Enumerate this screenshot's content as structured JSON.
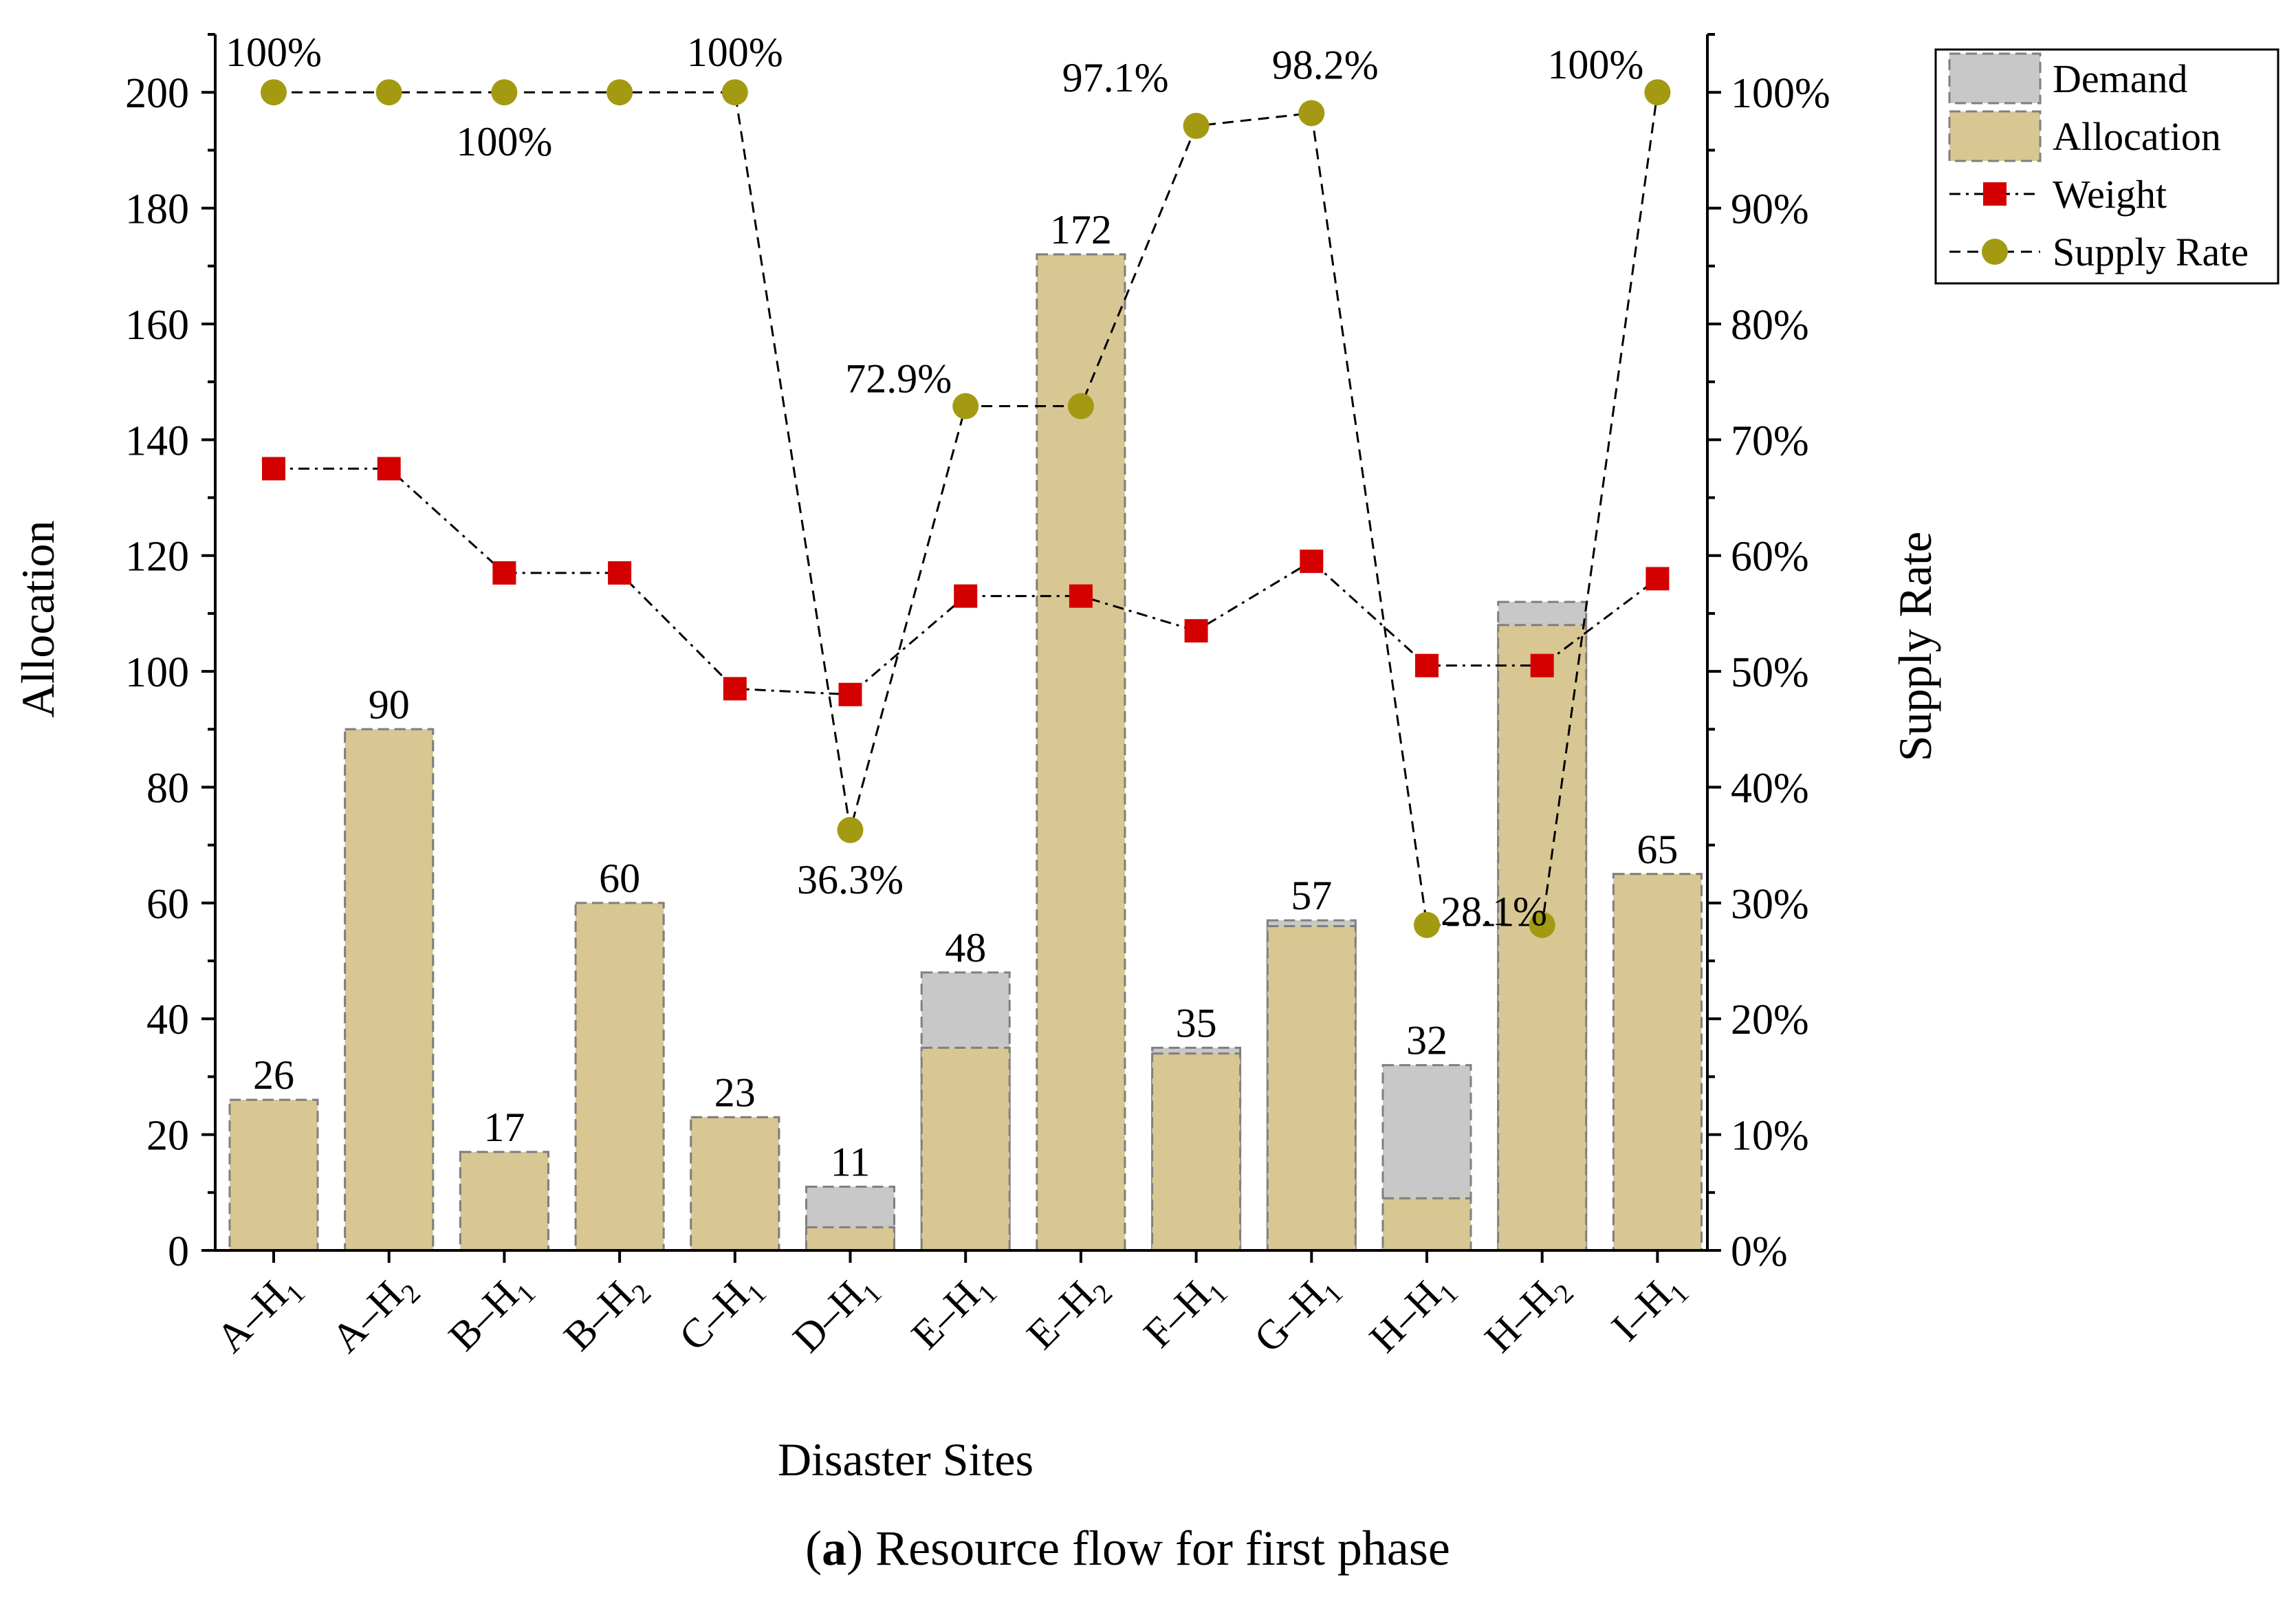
{
  "chart_data": {
    "type": "bar",
    "title": "",
    "caption": {
      "prefix": "(",
      "label": "a",
      "suffix": ") Resource flow for first phase"
    },
    "xlabel": "Disaster Sites",
    "ylabel": "Allocation",
    "y2label": "Supply Rate",
    "ylim": [
      0,
      210
    ],
    "y2lim": [
      0,
      105
    ],
    "yticks": [
      0,
      20,
      40,
      60,
      80,
      100,
      120,
      140,
      160,
      180,
      200
    ],
    "y2ticks": [
      "0%",
      "10%",
      "20%",
      "30%",
      "40%",
      "50%",
      "60%",
      "70%",
      "80%",
      "90%",
      "100%"
    ],
    "categories": [
      {
        "base": "A",
        "sub": "1"
      },
      {
        "base": "A",
        "sub": "2"
      },
      {
        "base": "B",
        "sub": "1"
      },
      {
        "base": "B",
        "sub": "2"
      },
      {
        "base": "C",
        "sub": "1"
      },
      {
        "base": "D",
        "sub": "1"
      },
      {
        "base": "E",
        "sub": "1"
      },
      {
        "base": "E",
        "sub": "2"
      },
      {
        "base": "F",
        "sub": "1"
      },
      {
        "base": "G",
        "sub": "1"
      },
      {
        "base": "H",
        "sub": "1"
      },
      {
        "base": "H",
        "sub": "2"
      },
      {
        "base": "I",
        "sub": "1"
      }
    ],
    "category_sep": "–H",
    "series": [
      {
        "name": "Demand",
        "type": "bar",
        "axis": "left",
        "color": "#c8c8c8",
        "values": [
          26,
          90,
          17,
          60,
          23,
          11,
          48,
          172,
          35,
          57,
          32,
          112,
          65
        ]
      },
      {
        "name": "Allocation",
        "type": "bar",
        "axis": "left",
        "color": "#d8c793",
        "values": [
          26,
          90,
          17,
          60,
          23,
          4,
          35,
          172,
          34,
          56,
          9,
          108,
          65
        ]
      },
      {
        "name": "Weight",
        "type": "line",
        "axis": "left",
        "color": "#d40000",
        "marker": "square",
        "values": [
          135,
          135,
          117,
          117,
          97,
          96,
          113,
          113,
          107,
          119,
          101,
          101,
          116
        ]
      },
      {
        "name": "Supply Rate",
        "type": "line",
        "axis": "right",
        "color": "#a39a12",
        "marker": "circle",
        "values": [
          100,
          100,
          100,
          100,
          100,
          36.3,
          72.9,
          72.9,
          97.1,
          98.2,
          28.1,
          28.1,
          100
        ]
      }
    ],
    "bar_labels": [
      "26",
      "90",
      "17",
      "60",
      "23",
      "11",
      "48",
      "172",
      "35",
      "57",
      "32",
      "",
      "65"
    ],
    "rate_labels": [
      {
        "index": 0,
        "text": "100%",
        "pos": "above"
      },
      {
        "index": 2,
        "text": "100%",
        "pos": "below"
      },
      {
        "index": 4,
        "text": "100%",
        "pos": "above"
      },
      {
        "index": 5,
        "text": "36.3%",
        "pos": "below"
      },
      {
        "index": 6,
        "text": "72.9%",
        "pos": "left"
      },
      {
        "index": 8,
        "text": "97.1%",
        "pos": "above-left"
      },
      {
        "index": 9,
        "text": "98.2%",
        "pos": "above-right"
      },
      {
        "index": 10,
        "text": "28.1%",
        "pos": "right"
      },
      {
        "index": 12,
        "text": "100%",
        "pos": "left"
      }
    ],
    "legend": {
      "position": "top-right",
      "entries": [
        "Demand",
        "Allocation",
        "Weight",
        "Supply Rate"
      ]
    }
  }
}
